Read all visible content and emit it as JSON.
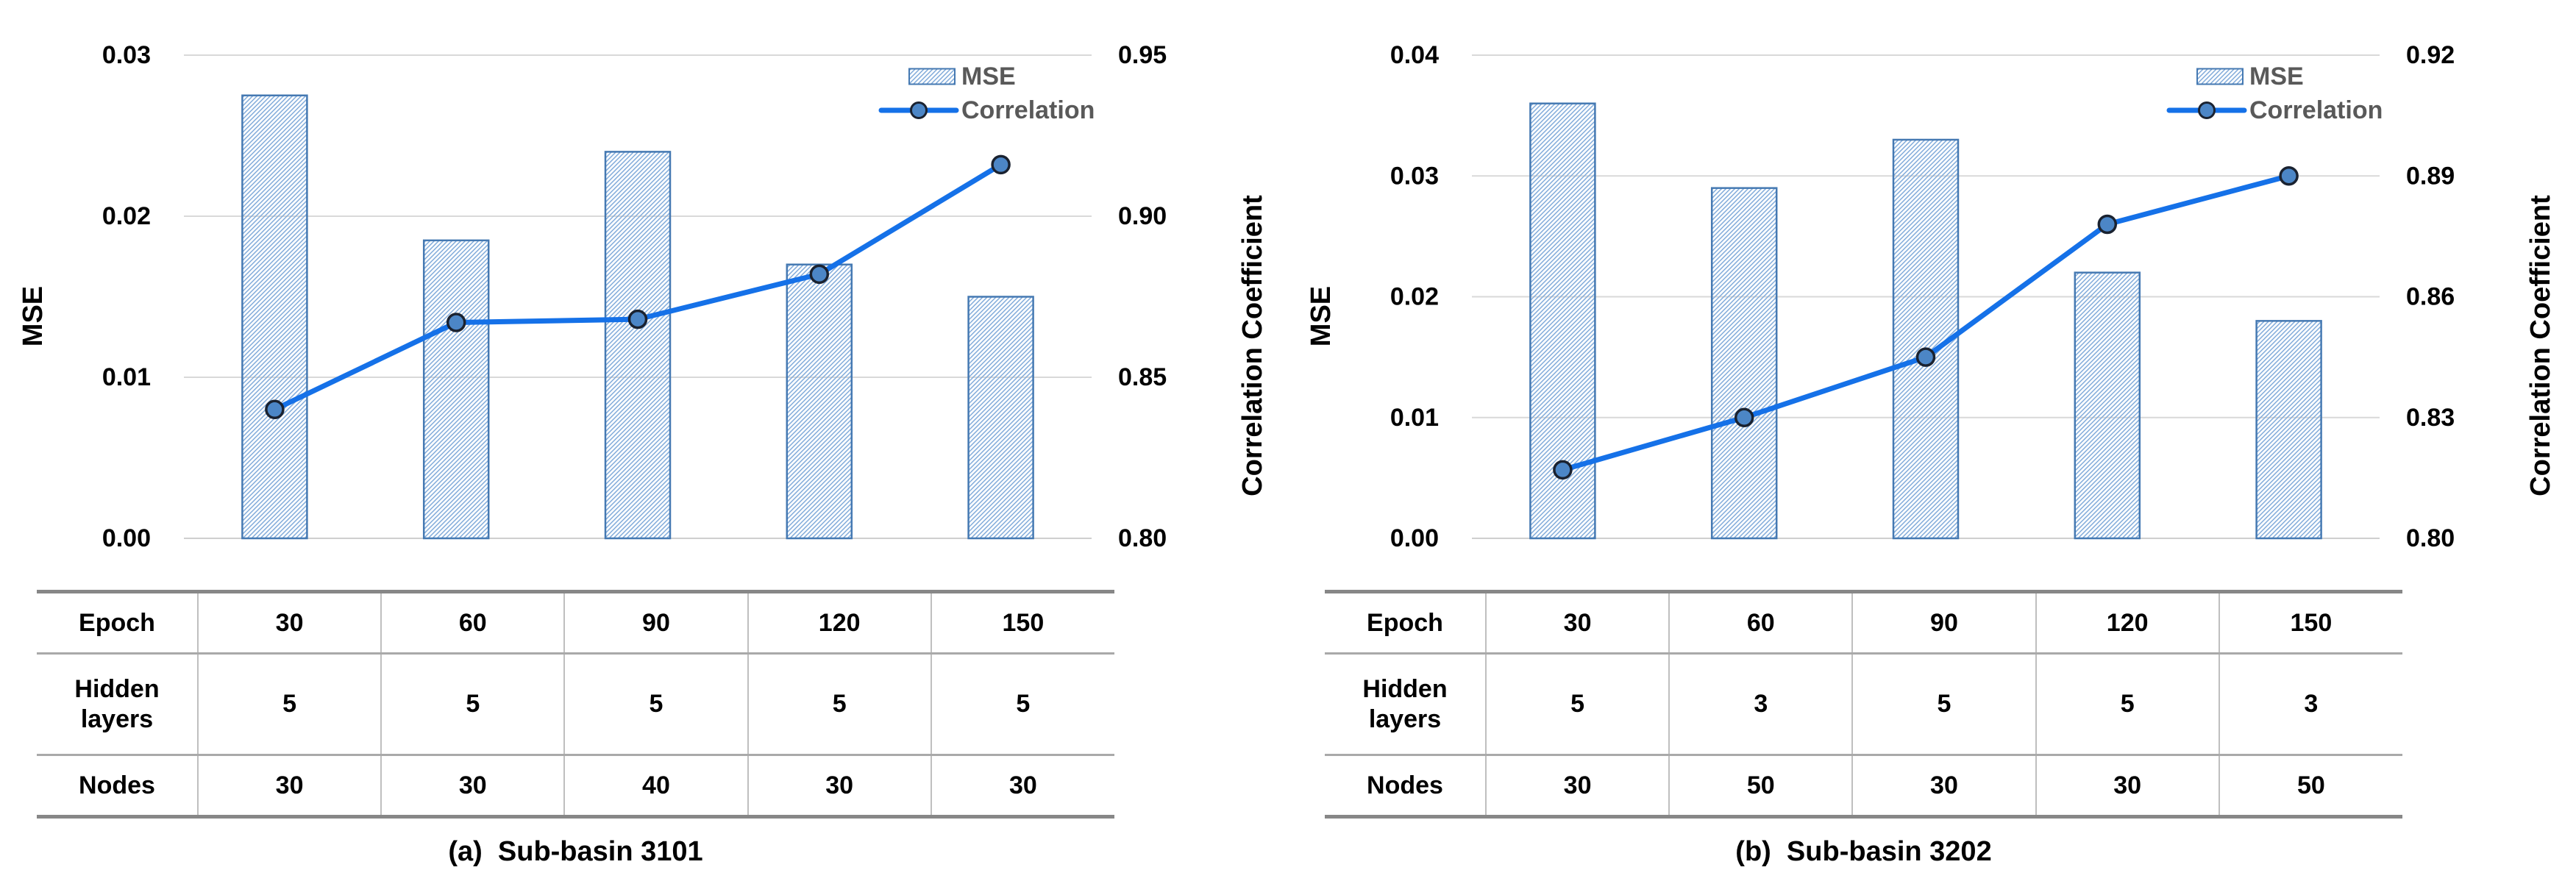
{
  "colors": {
    "line_blue": "#1571e8",
    "marker_fill": "#4c86c6",
    "marker_stroke": "#1a2230",
    "bar_stroke": "#4579b2",
    "hatch_blue": "#7fa9d9",
    "gridline": "#d9d9d9",
    "baseline": "#cfcfcf",
    "axis_text": "#000000",
    "legend_text": "#595959"
  },
  "chart_data": [
    {
      "type": "bar+line",
      "title": "",
      "categories": [
        "30",
        "60",
        "90",
        "120",
        "150"
      ],
      "series": [
        {
          "name": "MSE",
          "type": "bar",
          "axis": "left",
          "values": [
            0.0275,
            0.0185,
            0.024,
            0.017,
            0.015
          ]
        },
        {
          "name": "Correlation",
          "type": "line",
          "axis": "right",
          "values": [
            0.84,
            0.867,
            0.868,
            0.882,
            0.916
          ]
        }
      ],
      "left_axis": {
        "title": "MSE",
        "min": 0,
        "max": 0.03,
        "ticks": [
          0.03,
          0.02,
          0.01,
          0
        ],
        "tick_labels": [
          "0.03",
          "0.02",
          "0.01",
          "0.00"
        ]
      },
      "right_axis": {
        "title": "Correlation Coefficient",
        "min": 0.8,
        "max": 0.95,
        "ticks": [
          0.95,
          0.9,
          0.85,
          0.8
        ],
        "tick_labels": [
          "0.95",
          "0.90",
          "0.85",
          "0.80"
        ]
      },
      "legend": [
        {
          "label": "MSE",
          "swatch": "hatched-bar"
        },
        {
          "label": "Correlation",
          "swatch": "line-marker"
        }
      ],
      "grid": true,
      "legend_position": "top-right"
    },
    {
      "type": "bar+line",
      "title": "",
      "categories": [
        "30",
        "60",
        "90",
        "120",
        "150"
      ],
      "series": [
        {
          "name": "MSE",
          "type": "bar",
          "axis": "left",
          "values": [
            0.036,
            0.029,
            0.033,
            0.022,
            0.018
          ]
        },
        {
          "name": "Correlation",
          "type": "line",
          "axis": "right",
          "values": [
            0.817,
            0.83,
            0.845,
            0.878,
            0.89
          ]
        }
      ],
      "left_axis": {
        "title": "MSE",
        "min": 0,
        "max": 0.04,
        "ticks": [
          0.04,
          0.03,
          0.02,
          0.01,
          0
        ],
        "tick_labels": [
          "0.04",
          "0.03",
          "0.02",
          "0.01",
          "0.00"
        ]
      },
      "right_axis": {
        "title": "Correlation Coefficient",
        "min": 0.8,
        "max": 0.92,
        "ticks": [
          0.92,
          0.89,
          0.86,
          0.83,
          0.8
        ],
        "tick_labels": [
          "0.92",
          "0.89",
          "0.86",
          "0.83",
          "0.80"
        ]
      },
      "legend": [
        {
          "label": "MSE",
          "swatch": "hatched-bar"
        },
        {
          "label": "Correlation",
          "swatch": "line-marker"
        }
      ],
      "grid": true,
      "legend_position": "top-right"
    }
  ],
  "panels": [
    {
      "caption": "(a)  Sub-basin 3101",
      "table": {
        "rows": [
          {
            "header": "Epoch",
            "values": [
              "30",
              "60",
              "90",
              "120",
              "150"
            ]
          },
          {
            "header": "Hidden layers",
            "values": [
              "5",
              "5",
              "5",
              "5",
              "5"
            ]
          },
          {
            "header": "Nodes",
            "values": [
              "30",
              "30",
              "40",
              "30",
              "30"
            ]
          }
        ]
      }
    },
    {
      "caption": "(b)  Sub-basin 3202",
      "table": {
        "rows": [
          {
            "header": "Epoch",
            "values": [
              "30",
              "60",
              "90",
              "120",
              "150"
            ]
          },
          {
            "header": "Hidden layers",
            "values": [
              "5",
              "3",
              "5",
              "5",
              "3"
            ]
          },
          {
            "header": "Nodes",
            "values": [
              "30",
              "50",
              "30",
              "30",
              "50"
            ]
          }
        ]
      }
    }
  ]
}
